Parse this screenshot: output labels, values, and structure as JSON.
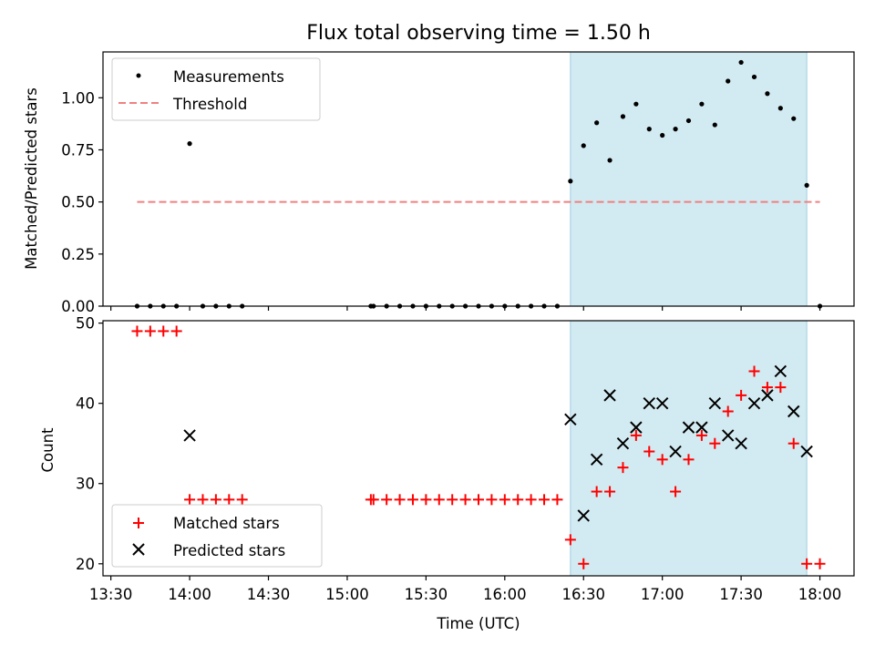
{
  "chart_data": [
    {
      "type": "scatter",
      "title": "Flux total observing time = 1.50 h",
      "xlabel": "",
      "ylabel": "Matched/Predicted stars",
      "ylim": [
        0,
        1.22
      ],
      "yticks": [
        "0.00",
        "0.25",
        "0.50",
        "0.75",
        "1.00"
      ],
      "shaded_region": {
        "start": "16:25",
        "end": "17:55",
        "color": "#add8e6"
      },
      "legend_position": "top-left",
      "series": [
        {
          "name": "Measurements",
          "marker": "dot",
          "color": "#000000",
          "points": [
            [
              "13:40",
              0
            ],
            [
              "13:45",
              0
            ],
            [
              "13:50",
              0
            ],
            [
              "13:55",
              0
            ],
            [
              "14:00",
              0.78
            ],
            [
              "14:05",
              0
            ],
            [
              "14:10",
              0
            ],
            [
              "14:15",
              0
            ],
            [
              "14:20",
              0
            ],
            [
              "15:09",
              0
            ],
            [
              "15:10",
              0
            ],
            [
              "15:15",
              0
            ],
            [
              "15:20",
              0
            ],
            [
              "15:25",
              0
            ],
            [
              "15:30",
              0
            ],
            [
              "15:35",
              0
            ],
            [
              "15:40",
              0
            ],
            [
              "15:45",
              0
            ],
            [
              "15:50",
              0
            ],
            [
              "15:55",
              0
            ],
            [
              "16:00",
              0
            ],
            [
              "16:05",
              0
            ],
            [
              "16:10",
              0
            ],
            [
              "16:15",
              0
            ],
            [
              "16:20",
              0
            ],
            [
              "16:25",
              0.6
            ],
            [
              "16:30",
              0.77
            ],
            [
              "16:35",
              0.88
            ],
            [
              "16:40",
              0.7
            ],
            [
              "16:45",
              0.91
            ],
            [
              "16:50",
              0.97
            ],
            [
              "16:55",
              0.85
            ],
            [
              "17:00",
              0.82
            ],
            [
              "17:05",
              0.85
            ],
            [
              "17:10",
              0.89
            ],
            [
              "17:15",
              0.97
            ],
            [
              "17:20",
              0.87
            ],
            [
              "17:25",
              1.08
            ],
            [
              "17:30",
              1.17
            ],
            [
              "17:35",
              1.1
            ],
            [
              "17:40",
              1.02
            ],
            [
              "17:45",
              0.95
            ],
            [
              "17:50",
              0.9
            ],
            [
              "17:55",
              0.58
            ],
            [
              "18:00",
              0
            ]
          ]
        },
        {
          "name": "Threshold",
          "marker": "dashed-line",
          "color": "#f08080",
          "points": [
            [
              "13:40",
              0.5
            ],
            [
              "18:00",
              0.5
            ]
          ]
        }
      ]
    },
    {
      "type": "scatter",
      "title": "",
      "xlabel": "Time (UTC)",
      "ylabel": "Count",
      "ylim": [
        18.5,
        50.3
      ],
      "yticks": [
        "20",
        "30",
        "40",
        "50"
      ],
      "xticks": [
        "13:30",
        "14:00",
        "14:30",
        "15:00",
        "15:30",
        "16:00",
        "16:30",
        "17:00",
        "17:30",
        "18:00"
      ],
      "shaded_region": {
        "start": "16:25",
        "end": "17:55",
        "color": "#add8e6"
      },
      "legend_position": "bottom-left",
      "series": [
        {
          "name": "Matched stars",
          "marker": "plus",
          "color": "#ff0000",
          "points": [
            [
              "13:40",
              49
            ],
            [
              "13:45",
              49
            ],
            [
              "13:50",
              49
            ],
            [
              "13:55",
              49
            ],
            [
              "14:00",
              28
            ],
            [
              "14:05",
              28
            ],
            [
              "14:10",
              28
            ],
            [
              "14:15",
              28
            ],
            [
              "14:20",
              28
            ],
            [
              "15:09",
              28
            ],
            [
              "15:10",
              28
            ],
            [
              "15:15",
              28
            ],
            [
              "15:20",
              28
            ],
            [
              "15:25",
              28
            ],
            [
              "15:30",
              28
            ],
            [
              "15:35",
              28
            ],
            [
              "15:40",
              28
            ],
            [
              "15:45",
              28
            ],
            [
              "15:50",
              28
            ],
            [
              "15:55",
              28
            ],
            [
              "16:00",
              28
            ],
            [
              "16:05",
              28
            ],
            [
              "16:10",
              28
            ],
            [
              "16:15",
              28
            ],
            [
              "16:20",
              28
            ],
            [
              "16:25",
              23
            ],
            [
              "16:30",
              20
            ],
            [
              "16:35",
              29
            ],
            [
              "16:40",
              29
            ],
            [
              "16:45",
              32
            ],
            [
              "16:50",
              36
            ],
            [
              "16:55",
              34
            ],
            [
              "17:00",
              33
            ],
            [
              "17:05",
              29
            ],
            [
              "17:10",
              33
            ],
            [
              "17:15",
              36
            ],
            [
              "17:20",
              35
            ],
            [
              "17:25",
              39
            ],
            [
              "17:30",
              41
            ],
            [
              "17:35",
              44
            ],
            [
              "17:40",
              42
            ],
            [
              "17:45",
              42
            ],
            [
              "17:50",
              35
            ],
            [
              "17:55",
              20
            ],
            [
              "18:00",
              20
            ]
          ]
        },
        {
          "name": "Predicted stars",
          "marker": "x",
          "color": "#000000",
          "points": [
            [
              "14:00",
              36
            ],
            [
              "16:25",
              38
            ],
            [
              "16:30",
              26
            ],
            [
              "16:35",
              33
            ],
            [
              "16:40",
              41
            ],
            [
              "16:45",
              35
            ],
            [
              "16:50",
              37
            ],
            [
              "16:55",
              40
            ],
            [
              "17:00",
              40
            ],
            [
              "17:05",
              34
            ],
            [
              "17:10",
              37
            ],
            [
              "17:15",
              37
            ],
            [
              "17:20",
              40
            ],
            [
              "17:25",
              36
            ],
            [
              "17:30",
              35
            ],
            [
              "17:35",
              40
            ],
            [
              "17:40",
              41
            ],
            [
              "17:45",
              44
            ],
            [
              "17:50",
              39
            ],
            [
              "17:55",
              34
            ]
          ]
        }
      ]
    }
  ]
}
